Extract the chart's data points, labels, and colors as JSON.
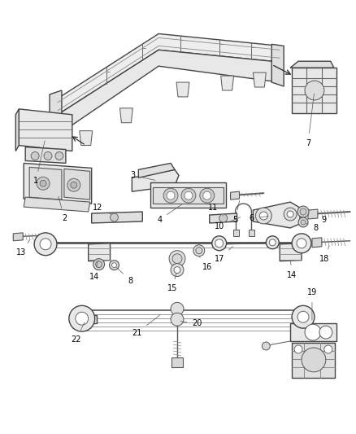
{
  "bg_color": "#ffffff",
  "figsize": [
    4.38,
    5.33
  ],
  "dpi": 100,
  "line_color": "#333333",
  "part_fill": "#f2f2f2",
  "part_edge": "#444444"
}
